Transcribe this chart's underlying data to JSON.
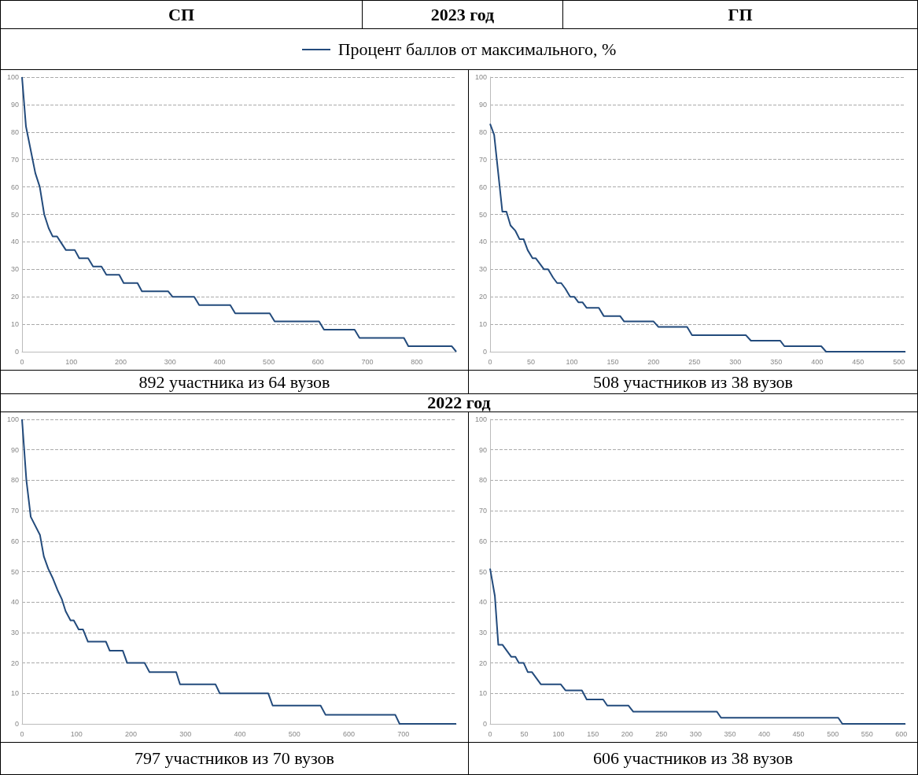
{
  "chart_data": [
    {
      "type": "line",
      "title": "СП",
      "subtitle": "2023 год",
      "annotations": [
        "892 участника из 64 вузов"
      ],
      "legend": "top",
      "grid": "y",
      "xlim": [
        0,
        880
      ],
      "xticks": [
        0,
        100,
        200,
        300,
        400,
        500,
        600,
        700,
        800
      ],
      "ylim": [
        0,
        100
      ],
      "yticks": [
        0,
        10,
        20,
        30,
        40,
        50,
        60,
        70,
        80,
        90,
        100
      ],
      "x": [
        0,
        8,
        27,
        36,
        45,
        54,
        62,
        71,
        78,
        89,
        107,
        116,
        134,
        144,
        161,
        171,
        197,
        206,
        234,
        243,
        296,
        305,
        349,
        359,
        422,
        432,
        502,
        512,
        602,
        612,
        674,
        684,
        774,
        783,
        871,
        880
      ],
      "series": [
        {
          "name": "Процент баллов от максимального, %",
          "color": "#234b7c",
          "values": [
            100,
            82,
            65,
            60,
            50,
            45,
            42,
            42,
            40,
            37,
            37,
            34,
            34,
            31,
            31,
            28,
            28,
            25,
            25,
            22,
            22,
            20,
            20,
            17,
            17,
            14,
            14,
            11,
            11,
            8,
            8,
            5,
            5,
            2,
            2,
            0
          ]
        }
      ]
    },
    {
      "type": "line",
      "title": "ГП",
      "annotations": [
        "508 участников из 38 вузов"
      ],
      "grid": "y",
      "xlim": [
        0,
        508
      ],
      "xticks": [
        0,
        50,
        100,
        150,
        200,
        250,
        300,
        350,
        400,
        450,
        500
      ],
      "ylim": [
        0,
        100
      ],
      "yticks": [
        0,
        10,
        20,
        30,
        40,
        50,
        60,
        70,
        80,
        90,
        100
      ],
      "x": [
        0,
        5,
        15,
        20,
        25,
        31,
        36,
        41,
        46,
        52,
        56,
        66,
        71,
        77,
        82,
        87,
        92,
        98,
        103,
        108,
        113,
        118,
        133,
        139,
        159,
        164,
        200,
        206,
        241,
        247,
        313,
        319,
        355,
        360,
        405,
        411,
        508
      ],
      "series": [
        {
          "color": "#234b7c",
          "values": [
            83,
            79,
            51,
            51,
            46,
            44,
            41,
            41,
            37,
            34,
            34,
            30,
            30,
            27,
            25,
            25,
            23,
            20,
            20,
            18,
            18,
            16,
            16,
            13,
            13,
            11,
            11,
            9,
            9,
            6,
            6,
            4,
            4,
            2,
            2,
            0,
            0
          ]
        }
      ]
    },
    {
      "type": "line",
      "subtitle": "2022 год",
      "annotations": [
        "797 участников из 70 вузов"
      ],
      "grid": "y",
      "xlim": [
        0,
        797
      ],
      "xticks": [
        0,
        100,
        200,
        300,
        400,
        500,
        600,
        700
      ],
      "ylim": [
        0,
        100
      ],
      "yticks": [
        0,
        10,
        20,
        30,
        40,
        50,
        60,
        70,
        80,
        90,
        100
      ],
      "x": [
        0,
        8,
        16,
        33,
        40,
        48,
        56,
        65,
        73,
        80,
        89,
        95,
        104,
        112,
        121,
        154,
        161,
        185,
        193,
        225,
        234,
        283,
        290,
        355,
        363,
        452,
        460,
        548,
        557,
        685,
        693,
        797
      ],
      "series": [
        {
          "color": "#234b7c",
          "values": [
            100,
            80,
            68,
            62,
            55,
            51,
            48,
            44,
            41,
            37,
            34,
            34,
            31,
            31,
            27,
            27,
            24,
            24,
            20,
            20,
            17,
            17,
            13,
            13,
            10,
            10,
            6,
            6,
            3,
            3,
            0,
            0
          ]
        }
      ]
    },
    {
      "type": "line",
      "annotations": [
        "606 участников из 38 вузов"
      ],
      "grid": "y",
      "xlim": [
        0,
        606
      ],
      "xticks": [
        0,
        50,
        100,
        150,
        200,
        250,
        300,
        350,
        400,
        450,
        500,
        550,
        600
      ],
      "ylim": [
        0,
        100
      ],
      "yticks": [
        0,
        10,
        20,
        30,
        40,
        50,
        60,
        70,
        80,
        90,
        100
      ],
      "x": [
        0,
        7,
        12,
        18,
        31,
        37,
        42,
        49,
        55,
        61,
        74,
        103,
        110,
        134,
        141,
        165,
        171,
        202,
        209,
        331,
        337,
        508,
        514,
        606
      ],
      "series": [
        {
          "color": "#234b7c",
          "values": [
            51,
            42,
            26,
            26,
            22,
            22,
            20,
            20,
            17,
            17,
            13,
            13,
            11,
            11,
            8,
            8,
            6,
            6,
            4,
            4,
            2,
            2,
            0,
            0
          ]
        }
      ]
    }
  ]
}
